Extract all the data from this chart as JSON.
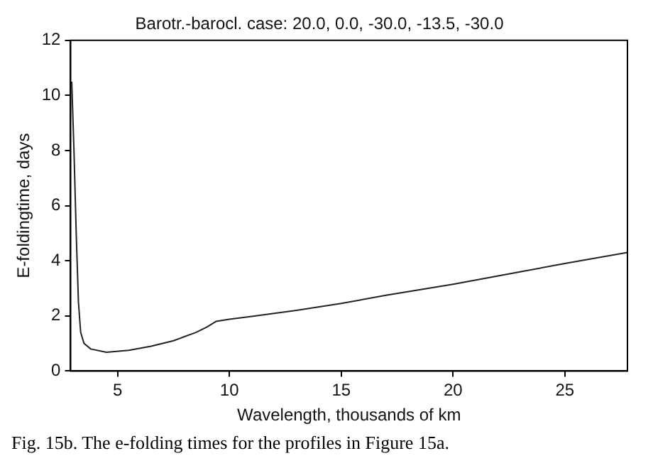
{
  "chart_data": {
    "type": "line",
    "title": "Barotr.-barocl. case: 20.0, 0.0, -30.0, -13.5, -30.0",
    "xlabel": "Wavelength, thousands of km",
    "ylabel": "E-foldingtime, days",
    "annotations": [
      "Fig. 15b. The e-folding times for the profiles in Figure 15a."
    ],
    "x": [
      2.95,
      3.05,
      3.15,
      3.25,
      3.35,
      3.5,
      3.8,
      4.5,
      5.5,
      6.5,
      7.5,
      8.5,
      9.0,
      9.4,
      10,
      11,
      13,
      15,
      17,
      20,
      23,
      25,
      27.8
    ],
    "series": [
      {
        "color": "#222222",
        "values": [
          10.5,
          8,
          5,
          2.5,
          1.4,
          1.0,
          0.8,
          0.68,
          0.75,
          0.9,
          1.1,
          1.4,
          1.6,
          1.8,
          1.88,
          1.98,
          2.2,
          2.45,
          2.75,
          3.15,
          3.6,
          3.9,
          4.3
        ]
      }
    ],
    "xlim": [
      2.9,
      27.8
    ],
    "xticks": [
      5,
      10,
      15,
      20,
      25
    ],
    "ylim": [
      0,
      12
    ],
    "yticks": [
      0,
      2,
      4,
      6,
      8,
      10,
      12
    ],
    "grid": false,
    "legend": false,
    "marker": "none",
    "line_style": "solid"
  }
}
